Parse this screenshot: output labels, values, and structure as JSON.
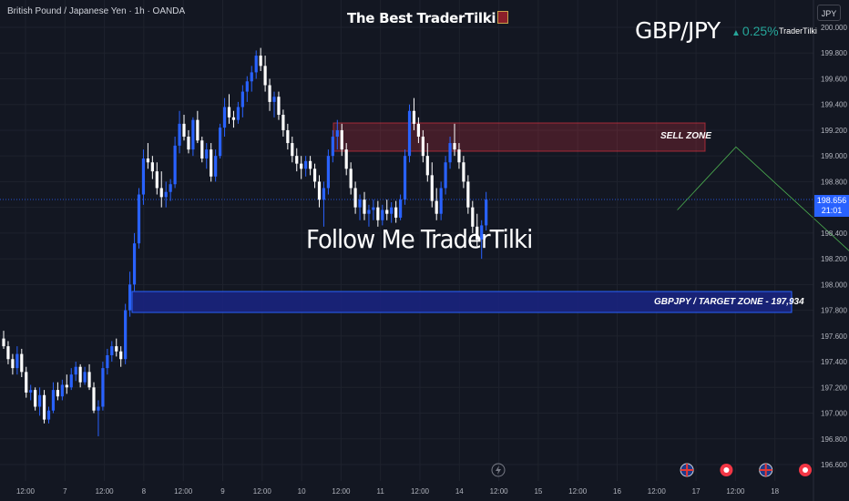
{
  "header": {
    "instrument": "British Pound / Japanese Yen · 1h · OANDA",
    "brand": "The Best TraderTilki",
    "symbol": "GBP/JPY",
    "change": "0.25%",
    "author": "TraderTilki",
    "currency": "JPY"
  },
  "overlay": {
    "follow_text": "Follow Me TraderTilki",
    "sell_zone_label": "SELL ZONE",
    "target_zone_label": "GBPJPY / TARGET ZONE - 197,934"
  },
  "price_tag": {
    "price": "198.656",
    "countdown": "21:01"
  },
  "colors": {
    "background": "#131722",
    "bull": "#2962ff",
    "bear": "#ffffff",
    "sell_zone": "#f23645",
    "target_zone": "#1a237e",
    "arrow": "#4caf50",
    "price_line": "#2962ff"
  },
  "events": [
    {
      "day_index": 17,
      "icon": "uk-flag-icon"
    },
    {
      "day_index": 18,
      "icon": "red-dot-icon"
    },
    {
      "day_index": 19,
      "icon": "uk-flag-icon"
    },
    {
      "day_index": 20,
      "icon": "red-dot-icon"
    }
  ],
  "chart_data": {
    "type": "candlestick",
    "title": "British Pound / Japanese Yen · 1h · OANDA",
    "ylim": [
      196.52,
      200.08
    ],
    "y_ticks": [
      "200.000",
      "199.800",
      "199.600",
      "199.400",
      "199.200",
      "199.000",
      "198.800",
      "198.600",
      "198.400",
      "198.200",
      "198.000",
      "197.800",
      "197.600",
      "197.400",
      "197.200",
      "197.000",
      "196.800",
      "196.600"
    ],
    "x_ticks": [
      "12:00",
      "7",
      "12:00",
      "8",
      "12:00",
      "9",
      "12:00",
      "10",
      "12:00",
      "11",
      "12:00",
      "14",
      "12:00",
      "15",
      "12:00",
      "16",
      "12:00",
      "17",
      "12:00",
      "18"
    ],
    "last_price": 198.656,
    "sell_zone": [
      199.04,
      199.26
    ],
    "target_zone": [
      197.78,
      197.934
    ],
    "projection": [
      {
        "bar": 149,
        "price": 198.58
      },
      {
        "bar": 162,
        "price": 199.07
      },
      {
        "bar": 194,
        "price": 198.04
      }
    ],
    "ohlc": [
      [
        197.58,
        197.64,
        197.5,
        197.52
      ],
      [
        197.52,
        197.56,
        197.38,
        197.42
      ],
      [
        197.42,
        197.46,
        197.3,
        197.35
      ],
      [
        197.35,
        197.52,
        197.3,
        197.46
      ],
      [
        197.46,
        197.5,
        197.28,
        197.32
      ],
      [
        197.32,
        197.36,
        197.12,
        197.16
      ],
      [
        197.16,
        197.22,
        197.1,
        197.18
      ],
      [
        197.18,
        197.2,
        197.02,
        197.05
      ],
      [
        197.05,
        197.2,
        196.98,
        197.14
      ],
      [
        197.14,
        197.18,
        196.92,
        196.95
      ],
      [
        196.95,
        197.05,
        196.92,
        197.02
      ],
      [
        197.02,
        197.24,
        197.0,
        197.18
      ],
      [
        197.18,
        197.24,
        197.1,
        197.13
      ],
      [
        197.13,
        197.26,
        197.1,
        197.22
      ],
      [
        197.22,
        197.3,
        197.15,
        197.2
      ],
      [
        197.2,
        197.35,
        197.18,
        197.3
      ],
      [
        197.3,
        197.4,
        197.25,
        197.36
      ],
      [
        197.36,
        197.38,
        197.2,
        197.24
      ],
      [
        197.24,
        197.36,
        197.22,
        197.32
      ],
      [
        197.32,
        197.38,
        197.18,
        197.2
      ],
      [
        197.2,
        197.24,
        197.0,
        197.02
      ],
      [
        197.02,
        197.1,
        196.82,
        197.05
      ],
      [
        197.05,
        197.4,
        197.02,
        197.35
      ],
      [
        197.35,
        197.5,
        197.3,
        197.45
      ],
      [
        197.45,
        197.56,
        197.4,
        197.52
      ],
      [
        197.52,
        197.58,
        197.44,
        197.48
      ],
      [
        197.48,
        197.52,
        197.36,
        197.42
      ],
      [
        197.42,
        197.85,
        197.38,
        197.8
      ],
      [
        197.8,
        198.1,
        197.75,
        198.0
      ],
      [
        198.0,
        198.4,
        197.95,
        198.32
      ],
      [
        198.32,
        198.75,
        198.28,
        198.7
      ],
      [
        198.7,
        199.05,
        198.62,
        198.98
      ],
      [
        198.98,
        199.1,
        198.9,
        198.95
      ],
      [
        198.95,
        199.0,
        198.82,
        198.88
      ],
      [
        198.88,
        198.95,
        198.7,
        198.75
      ],
      [
        198.75,
        198.88,
        198.6,
        198.68
      ],
      [
        198.68,
        198.8,
        198.6,
        198.72
      ],
      [
        198.72,
        198.82,
        198.65,
        198.78
      ],
      [
        198.78,
        199.15,
        198.75,
        199.08
      ],
      [
        199.08,
        199.35,
        199.02,
        199.25
      ],
      [
        199.25,
        199.32,
        199.12,
        199.15
      ],
      [
        199.15,
        199.2,
        199.02,
        199.05
      ],
      [
        199.05,
        199.3,
        199.0,
        199.28
      ],
      [
        199.28,
        199.35,
        199.1,
        199.12
      ],
      [
        199.12,
        199.15,
        198.95,
        198.98
      ],
      [
        198.98,
        199.1,
        198.9,
        199.05
      ],
      [
        199.05,
        199.1,
        198.8,
        198.84
      ],
      [
        198.84,
        199.05,
        198.8,
        199.0
      ],
      [
        199.0,
        199.25,
        198.98,
        199.22
      ],
      [
        199.22,
        199.45,
        199.15,
        199.38
      ],
      [
        199.38,
        199.48,
        199.25,
        199.3
      ],
      [
        199.3,
        199.35,
        199.22,
        199.28
      ],
      [
        199.28,
        199.42,
        199.25,
        199.38
      ],
      [
        199.38,
        199.55,
        199.3,
        199.5
      ],
      [
        199.5,
        199.62,
        199.42,
        199.58
      ],
      [
        199.58,
        199.7,
        199.5,
        199.65
      ],
      [
        199.65,
        199.82,
        199.6,
        199.78
      ],
      [
        199.78,
        199.84,
        199.66,
        199.7
      ],
      [
        199.7,
        199.78,
        199.5,
        199.55
      ],
      [
        199.55,
        199.6,
        199.35,
        199.42
      ],
      [
        199.42,
        199.5,
        199.3,
        199.46
      ],
      [
        199.46,
        199.5,
        199.28,
        199.32
      ],
      [
        199.32,
        199.36,
        199.15,
        199.2
      ],
      [
        199.2,
        199.25,
        199.05,
        199.1
      ],
      [
        199.1,
        199.15,
        198.95,
        199.0
      ],
      [
        199.0,
        199.06,
        198.88,
        198.94
      ],
      [
        198.94,
        199.0,
        198.82,
        198.9
      ],
      [
        198.9,
        199.0,
        198.84,
        198.96
      ],
      [
        198.96,
        199.0,
        198.85,
        198.9
      ],
      [
        198.9,
        198.94,
        198.75,
        198.8
      ],
      [
        198.8,
        198.85,
        198.6,
        198.66
      ],
      [
        198.66,
        198.8,
        198.45,
        198.75
      ],
      [
        198.75,
        199.05,
        198.7,
        199.0
      ],
      [
        199.0,
        199.2,
        198.95,
        199.15
      ],
      [
        199.15,
        199.28,
        199.05,
        199.2
      ],
      [
        199.2,
        199.25,
        199.0,
        199.05
      ],
      [
        199.05,
        199.1,
        198.85,
        198.9
      ],
      [
        198.9,
        198.95,
        198.7,
        198.75
      ],
      [
        198.75,
        198.8,
        198.55,
        198.6
      ],
      [
        198.6,
        198.7,
        198.5,
        198.66
      ],
      [
        198.66,
        198.72,
        198.5,
        198.55
      ],
      [
        198.55,
        198.62,
        198.45,
        198.58
      ],
      [
        198.58,
        198.66,
        198.5,
        198.6
      ],
      [
        198.6,
        198.65,
        198.45,
        198.5
      ],
      [
        198.5,
        198.62,
        198.46,
        198.58
      ],
      [
        198.58,
        198.66,
        198.5,
        198.55
      ],
      [
        198.55,
        198.64,
        198.48,
        198.6
      ],
      [
        198.6,
        198.65,
        198.48,
        198.52
      ],
      [
        198.52,
        198.7,
        198.5,
        198.66
      ],
      [
        198.66,
        199.05,
        198.62,
        199.0
      ],
      [
        199.0,
        199.4,
        198.95,
        199.35
      ],
      [
        199.35,
        199.45,
        199.2,
        199.25
      ],
      [
        199.25,
        199.3,
        199.1,
        199.15
      ],
      [
        199.15,
        199.2,
        198.95,
        199.0
      ],
      [
        199.0,
        199.1,
        198.8,
        198.85
      ],
      [
        198.85,
        198.95,
        198.6,
        198.65
      ],
      [
        198.65,
        198.75,
        198.5,
        198.55
      ],
      [
        198.55,
        198.8,
        198.5,
        198.75
      ],
      [
        198.75,
        199.0,
        198.7,
        198.95
      ],
      [
        198.95,
        199.15,
        198.9,
        199.1
      ],
      [
        199.1,
        199.25,
        199.0,
        199.05
      ],
      [
        199.05,
        199.1,
        198.9,
        198.95
      ],
      [
        198.95,
        199.0,
        198.75,
        198.8
      ],
      [
        198.8,
        198.85,
        198.55,
        198.6
      ],
      [
        198.6,
        198.65,
        198.4,
        198.45
      ],
      [
        198.45,
        198.55,
        198.3,
        198.35
      ],
      [
        198.35,
        198.5,
        198.2,
        198.46
      ],
      [
        198.46,
        198.72,
        198.42,
        198.66
      ]
    ]
  }
}
